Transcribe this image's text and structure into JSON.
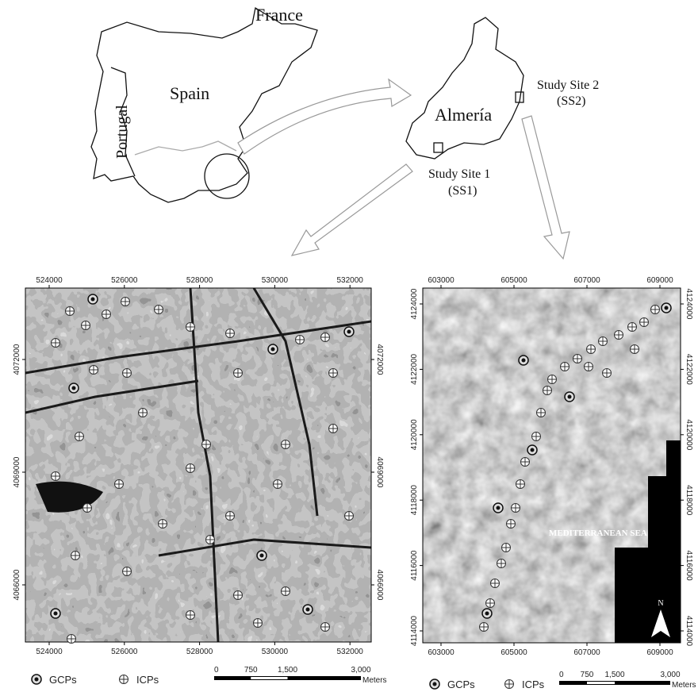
{
  "inset": {
    "labels": {
      "france": "France",
      "spain": "Spain",
      "portugal": "Portugal",
      "almeria": "Almería",
      "site2": "Study Site 2",
      "site2_code": "(SS2)",
      "site1": "Study Site 1",
      "site1_code": "(SS1)"
    }
  },
  "maps": [
    {
      "x_ticks": [
        524000,
        526000,
        528000,
        530000,
        532000
      ],
      "y_ticks": [
        4072000,
        4069000,
        4066000
      ],
      "legend": {
        "gcp": "GCPs",
        "icp": "ICPs"
      },
      "scale": {
        "labels": [
          "0",
          "750",
          "1,500",
          "3,000"
        ],
        "unit": "Meters"
      }
    },
    {
      "x_ticks": [
        603000,
        605000,
        607000,
        609000
      ],
      "y_ticks": [
        4124000,
        4122000,
        4120000,
        4118000,
        4116000,
        4114000
      ],
      "legend": {
        "gcp": "GCPs",
        "icp": "ICPs"
      },
      "scale": {
        "labels": [
          "0",
          "750",
          "1,500",
          "3,000"
        ],
        "unit": "Meters"
      },
      "sea_label": "MEDITERRANEAN SEA",
      "north": "N"
    }
  ]
}
